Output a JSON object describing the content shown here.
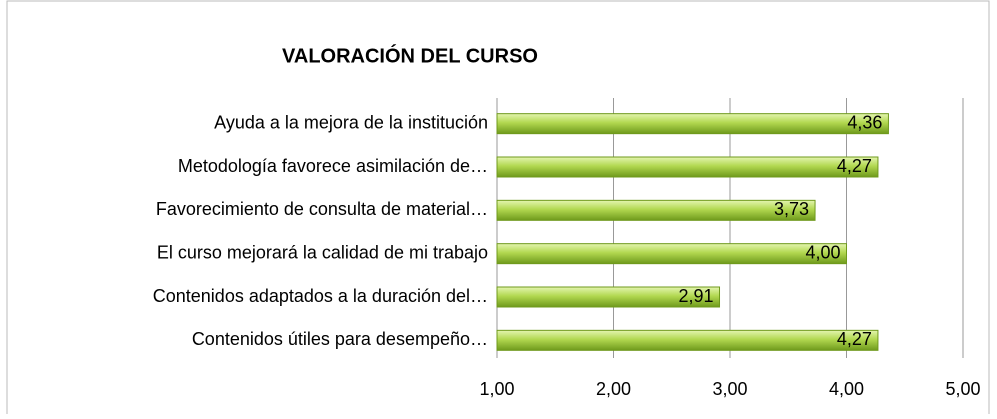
{
  "chart_data": {
    "type": "bar",
    "orientation": "horizontal",
    "title": "VALORACIÓN DEL CURSO",
    "categories": [
      "Ayuda a la mejora de la institución",
      "Metodología favorece asimilación de…",
      "Favorecimiento de consulta de material…",
      "El curso mejorará la calidad de mi trabajo",
      "Contenidos adaptados a la duración del…",
      "Contenidos útiles para desempeño…"
    ],
    "values": [
      4.36,
      4.27,
      3.73,
      4.0,
      2.91,
      4.27
    ],
    "value_labels": [
      "4,36",
      "4,27",
      "3,73",
      "4,00",
      "2,91",
      "4,27"
    ],
    "color": "#9acd32",
    "xlim": [
      1,
      5
    ],
    "xticks": [
      {
        "value": 1,
        "label": "1,00"
      },
      {
        "value": 2,
        "label": "2,00"
      },
      {
        "value": 3,
        "label": "3,00"
      },
      {
        "value": 4,
        "label": "4,00"
      },
      {
        "value": 5,
        "label": "5,00"
      }
    ],
    "grid": true
  }
}
